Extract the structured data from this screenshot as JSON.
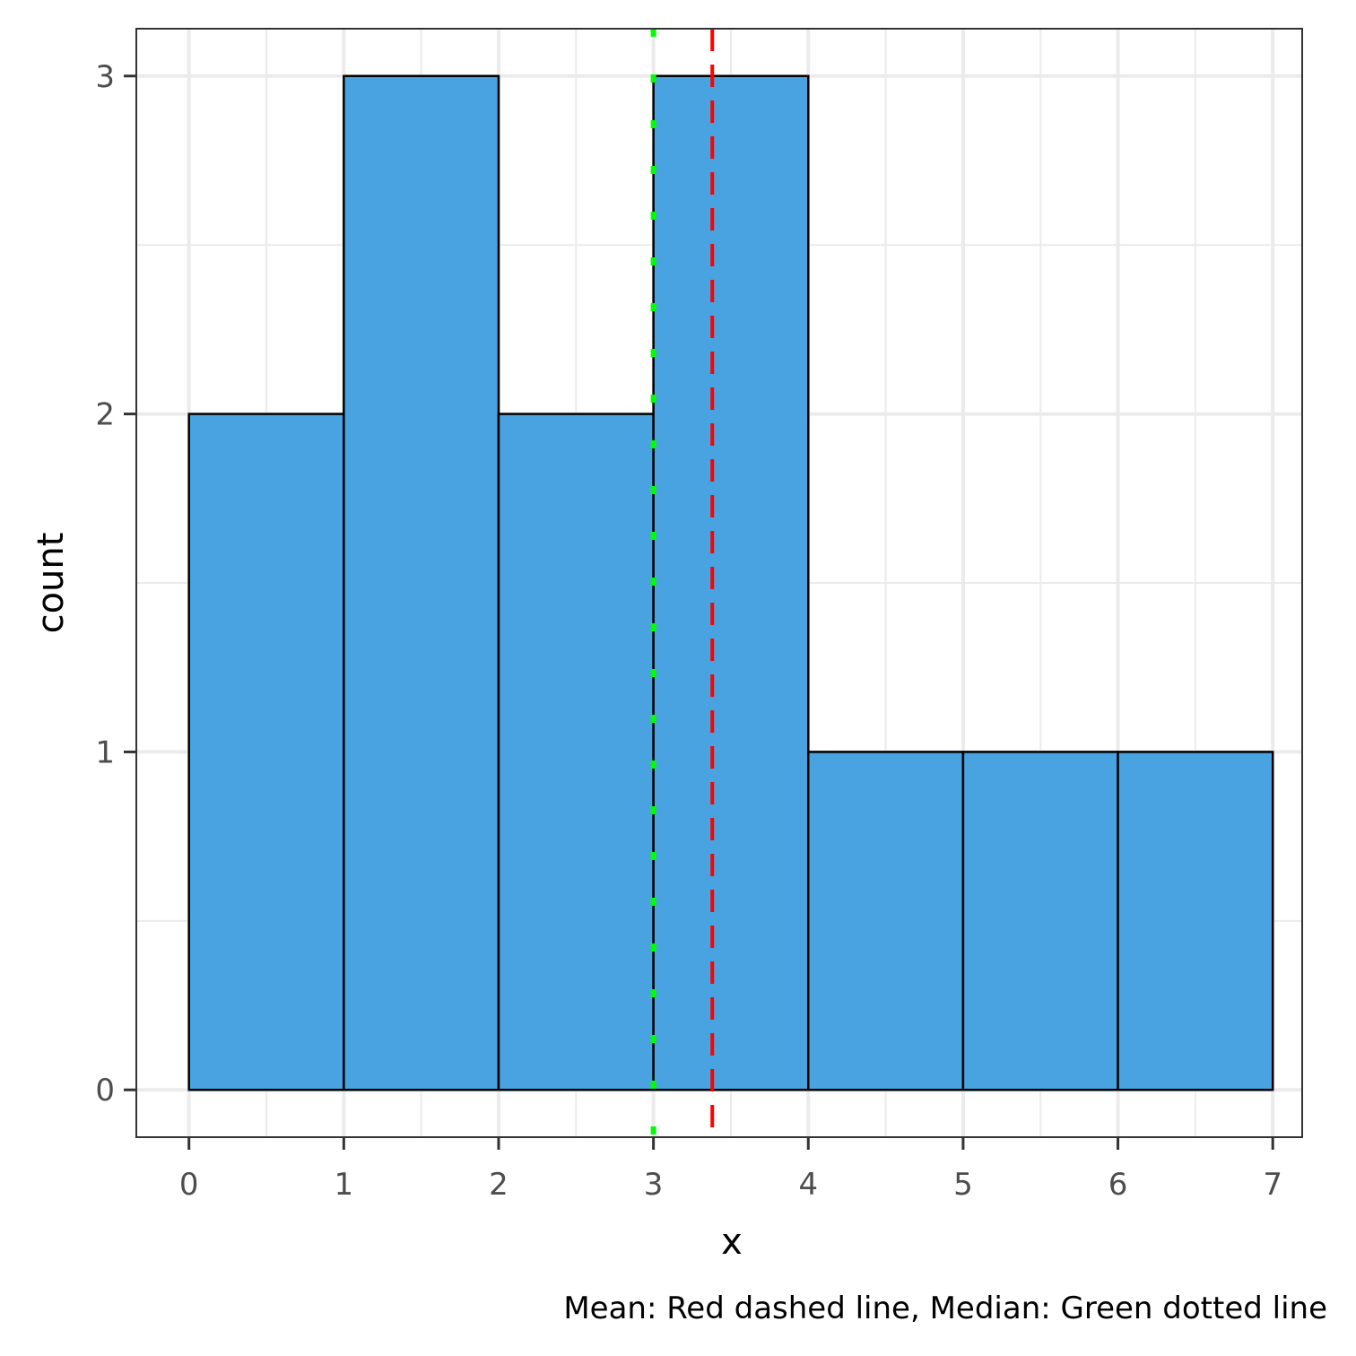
{
  "chart_data": {
    "type": "bar",
    "subtype": "histogram",
    "bins": [
      {
        "x0": 0,
        "x1": 1,
        "count": 2
      },
      {
        "x0": 1,
        "x1": 2,
        "count": 3
      },
      {
        "x0": 2,
        "x1": 3,
        "count": 2
      },
      {
        "x0": 3,
        "x1": 4,
        "count": 3
      },
      {
        "x0": 4,
        "x1": 5,
        "count": 1
      },
      {
        "x0": 5,
        "x1": 6,
        "count": 1
      },
      {
        "x0": 6,
        "x1": 7,
        "count": 1
      }
    ],
    "mean": 3.38,
    "median": 3,
    "xlabel": "x",
    "ylabel": "count",
    "caption": "Mean: Red dashed line, Median: Green dotted line",
    "xlim": [
      -0.34,
      7.19
    ],
    "ylim": [
      -0.14,
      3.14
    ],
    "x_ticks": [
      "0",
      "1",
      "2",
      "3",
      "4",
      "5",
      "6",
      "7"
    ],
    "y_ticks": [
      "0",
      "1",
      "2",
      "3"
    ],
    "grid": true,
    "colors": {
      "bar_fill": "#4aa3e1",
      "bar_stroke": "#000000",
      "mean_line": "#ff0000",
      "median_line": "#00ff00",
      "grid": "#ebebeb",
      "panel_border": "#333333"
    }
  }
}
